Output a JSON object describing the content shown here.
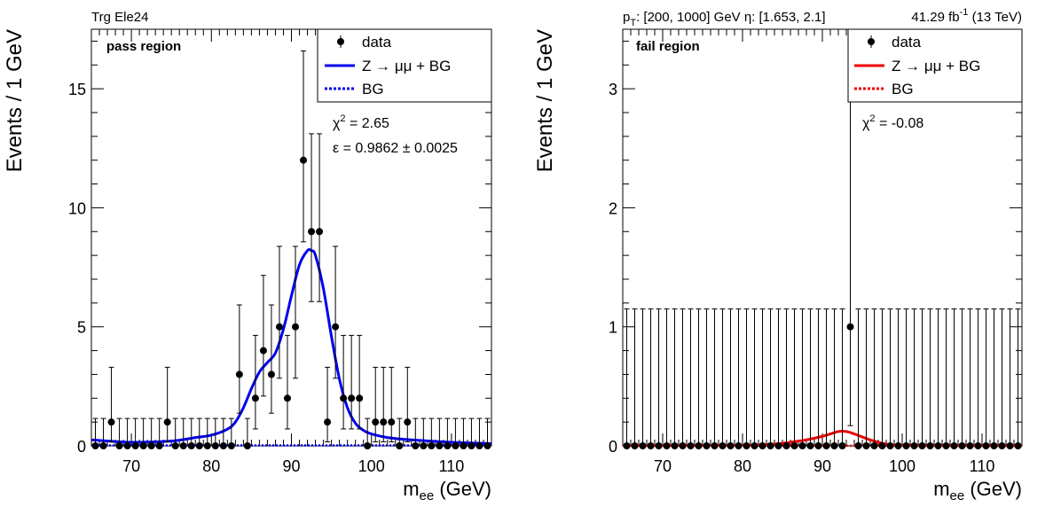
{
  "chart_data": [
    {
      "type": "scatter",
      "panel": "pass",
      "header_left": "Trg Ele24",
      "region_label": "pass region",
      "xlabel_main": "m",
      "xlabel_sub": "ee",
      "xlabel_unit": " (GeV)",
      "ylabel": "Events / 1 GeV",
      "xlim": [
        65,
        115
      ],
      "ylim": [
        0,
        17.5
      ],
      "xticks": [
        70,
        80,
        90,
        100,
        110
      ],
      "yticks": [
        0,
        5,
        10,
        15
      ],
      "legend": {
        "data": "data",
        "model": "Z → μμ + BG",
        "bg": "BG"
      },
      "chi2_sym": "χ",
      "chi2_sup": "2",
      "chi2_value": " = 2.65",
      "eff_text": "ε = 0.9862 ± 0.0025",
      "colors": {
        "model": "#0000ee",
        "bg": "#0000ee",
        "data": "#000000"
      },
      "data_x": [
        65.5,
        66.5,
        67.5,
        68.5,
        69.5,
        70.5,
        71.5,
        72.5,
        73.5,
        74.5,
        75.5,
        76.5,
        77.5,
        78.5,
        79.5,
        80.5,
        81.5,
        82.5,
        83.5,
        84.5,
        85.5,
        86.5,
        87.5,
        88.5,
        89.5,
        90.5,
        91.5,
        92.5,
        93.5,
        94.5,
        95.5,
        96.5,
        97.5,
        98.5,
        99.5,
        100.5,
        101.5,
        102.5,
        103.5,
        104.5,
        105.5,
        106.5,
        107.5,
        108.5,
        109.5,
        110.5,
        111.5,
        112.5,
        113.5,
        114.5
      ],
      "data_y": [
        0,
        0,
        1,
        0,
        0,
        0,
        0,
        0,
        0,
        1,
        0,
        0,
        0,
        0,
        0,
        0,
        0,
        0,
        3,
        0,
        2,
        4,
        3,
        5,
        2,
        5,
        12,
        9,
        9,
        1,
        5,
        2,
        2,
        2,
        0,
        1,
        1,
        1,
        0,
        1,
        0,
        0,
        0,
        0,
        0,
        0,
        0,
        0,
        0,
        0
      ],
      "model_x": [
        65,
        70,
        75,
        78,
        80,
        82,
        83,
        84,
        85,
        86,
        87,
        88,
        89,
        90,
        91,
        92,
        92.5,
        93,
        94,
        95,
        96,
        97,
        98,
        99,
        100,
        102,
        105,
        110,
        115
      ],
      "model_y": [
        0.25,
        0.15,
        0.2,
        0.35,
        0.45,
        0.7,
        1.0,
        1.6,
        2.4,
        3.1,
        3.5,
        3.9,
        4.9,
        6.3,
        7.6,
        8.2,
        8.2,
        8.0,
        6.6,
        4.6,
        2.8,
        1.6,
        0.95,
        0.65,
        0.5,
        0.35,
        0.25,
        0.15,
        0.1
      ],
      "bg_y": 0.02
    },
    {
      "type": "scatter",
      "panel": "fail",
      "header_right": "41.29 fb",
      "header_right_sup": "-1",
      "header_right_tail": " (13 TeV)",
      "header_pt": "p",
      "header_pt_sub": "T",
      "header_range": ": [200, 1000] GeV η: [1.653, 2.1]",
      "region_label": "fail region",
      "xlabel_main": "m",
      "xlabel_sub": "ee",
      "xlabel_unit": " (GeV)",
      "ylabel": "Events / 1 GeV",
      "xlim": [
        65,
        115
      ],
      "ylim": [
        0,
        3.5
      ],
      "xticks": [
        70,
        80,
        90,
        100,
        110
      ],
      "yticks": [
        0,
        1,
        2,
        3
      ],
      "legend": {
        "data": "data",
        "model": "Z → μμ + BG",
        "bg": "BG"
      },
      "chi2_sym": "χ",
      "chi2_sup": "2",
      "chi2_value": " = -0.08",
      "colors": {
        "model": "#ee0000",
        "bg": "#ee0000",
        "data": "#000000"
      },
      "data_x": [
        65.5,
        66.5,
        67.5,
        68.5,
        69.5,
        70.5,
        71.5,
        72.5,
        73.5,
        74.5,
        75.5,
        76.5,
        77.5,
        78.5,
        79.5,
        80.5,
        81.5,
        82.5,
        83.5,
        84.5,
        85.5,
        86.5,
        87.5,
        88.5,
        89.5,
        90.5,
        91.5,
        92.5,
        93.5,
        94.5,
        95.5,
        96.5,
        97.5,
        98.5,
        99.5,
        100.5,
        101.5,
        102.5,
        103.5,
        104.5,
        105.5,
        106.5,
        107.5,
        108.5,
        109.5,
        110.5,
        111.5,
        112.5,
        113.5,
        114.5
      ],
      "data_y": [
        0,
        0,
        0,
        0,
        0,
        0,
        0,
        0,
        0,
        0,
        0,
        0,
        0,
        0,
        0,
        0,
        0,
        0,
        0,
        0,
        0,
        0,
        0,
        0,
        0,
        0,
        0,
        0,
        1,
        0,
        0,
        0,
        0,
        0,
        0,
        0,
        0,
        0,
        0,
        0,
        0,
        0,
        0,
        0,
        0,
        0,
        0,
        0,
        0,
        0
      ],
      "model_x": [
        65,
        80,
        84,
        86,
        88,
        90,
        91,
        92,
        93,
        94,
        96,
        98,
        100,
        115
      ],
      "model_y": [
        0.003,
        0.005,
        0.015,
        0.03,
        0.05,
        0.08,
        0.1,
        0.12,
        0.12,
        0.1,
        0.05,
        0.015,
        0.005,
        0.002
      ],
      "bg_y": 0.001
    }
  ]
}
